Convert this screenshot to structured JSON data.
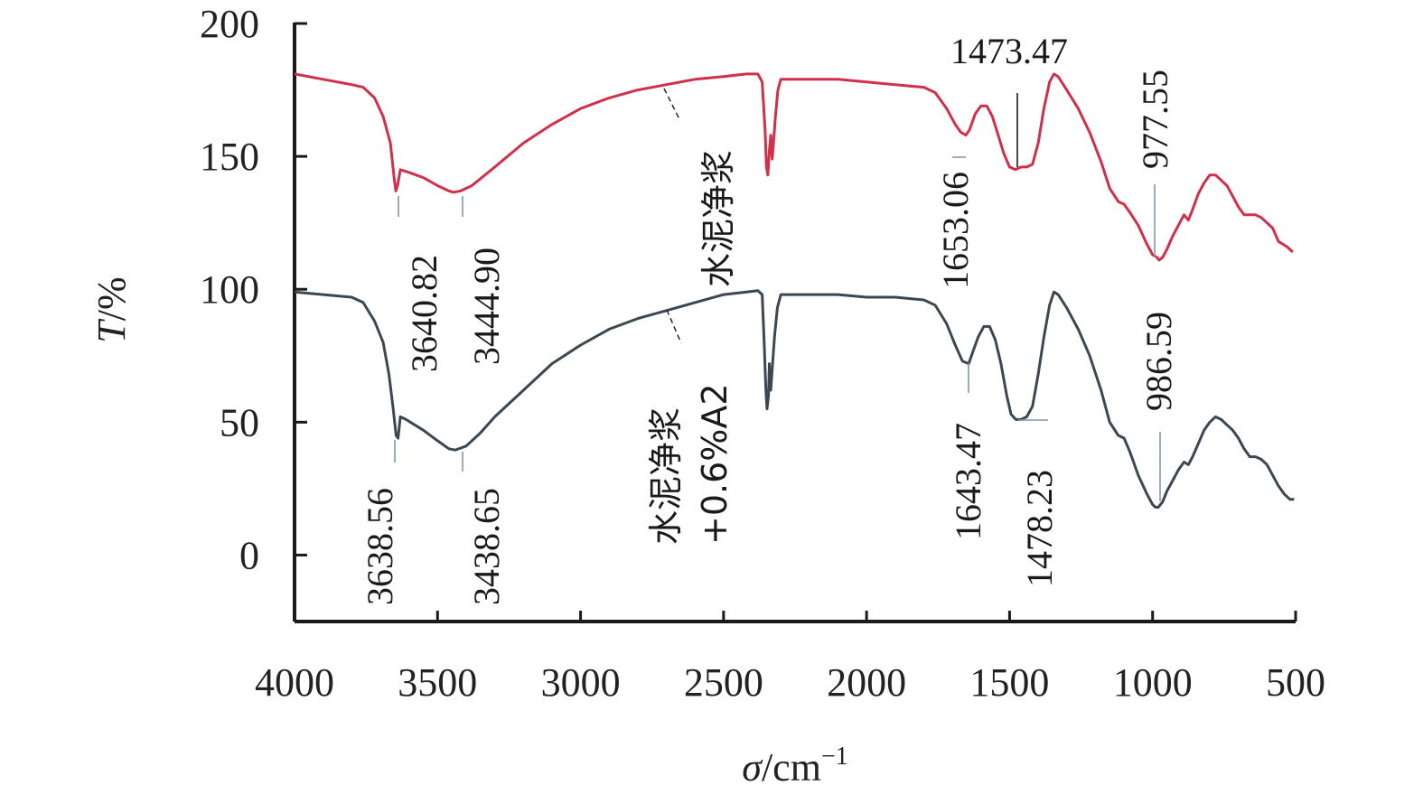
{
  "chart_data": {
    "type": "line",
    "title": "",
    "xlabel_italic": "σ",
    "xlabel_rest": "/cm",
    "xlabel_sup": "−1",
    "ylabel_italic": "T",
    "ylabel_rest": "/%",
    "xlim": [
      4000,
      500
    ],
    "ylim": [
      -25,
      200
    ],
    "x_ticks": [
      "4000",
      "3500",
      "3000",
      "2500",
      "2000",
      "1500",
      "1000",
      "500"
    ],
    "y_ticks": [
      "200",
      "150",
      "100",
      "50",
      "0"
    ],
    "grid": false,
    "series": [
      {
        "name": "水泥净浆",
        "color": "#d0304a",
        "points": [
          [
            4000,
            181
          ],
          [
            3900,
            179
          ],
          [
            3800,
            177
          ],
          [
            3760,
            176
          ],
          [
            3720,
            172
          ],
          [
            3690,
            165
          ],
          [
            3665,
            155
          ],
          [
            3652,
            142
          ],
          [
            3646,
            137
          ],
          [
            3640,
            139
          ],
          [
            3630,
            145
          ],
          [
            3600,
            144
          ],
          [
            3550,
            142
          ],
          [
            3500,
            139
          ],
          [
            3460,
            137
          ],
          [
            3444,
            136.5
          ],
          [
            3420,
            137
          ],
          [
            3380,
            139
          ],
          [
            3300,
            146
          ],
          [
            3200,
            155
          ],
          [
            3100,
            162
          ],
          [
            3000,
            168
          ],
          [
            2900,
            172
          ],
          [
            2800,
            175
          ],
          [
            2700,
            177
          ],
          [
            2600,
            179
          ],
          [
            2500,
            180
          ],
          [
            2420,
            181
          ],
          [
            2380,
            181
          ],
          [
            2365,
            178
          ],
          [
            2355,
            160
          ],
          [
            2350,
            146
          ],
          [
            2345,
            143
          ],
          [
            2340,
            152
          ],
          [
            2335,
            158
          ],
          [
            2330,
            149
          ],
          [
            2325,
            156
          ],
          [
            2318,
            166
          ],
          [
            2310,
            175
          ],
          [
            2300,
            179
          ],
          [
            2250,
            179
          ],
          [
            2200,
            179
          ],
          [
            2100,
            179
          ],
          [
            2000,
            178
          ],
          [
            1900,
            177
          ],
          [
            1800,
            176
          ],
          [
            1760,
            174
          ],
          [
            1720,
            168
          ],
          [
            1690,
            162
          ],
          [
            1670,
            159
          ],
          [
            1653,
            158
          ],
          [
            1640,
            160
          ],
          [
            1620,
            166
          ],
          [
            1600,
            169
          ],
          [
            1580,
            169
          ],
          [
            1560,
            165
          ],
          [
            1540,
            158
          ],
          [
            1520,
            151
          ],
          [
            1500,
            146
          ],
          [
            1480,
            145
          ],
          [
            1460,
            146
          ],
          [
            1440,
            146
          ],
          [
            1420,
            147
          ],
          [
            1400,
            155
          ],
          [
            1380,
            168
          ],
          [
            1360,
            178
          ],
          [
            1345,
            181
          ],
          [
            1330,
            180
          ],
          [
            1300,
            175
          ],
          [
            1260,
            168
          ],
          [
            1220,
            159
          ],
          [
            1180,
            148
          ],
          [
            1150,
            138
          ],
          [
            1120,
            133
          ],
          [
            1100,
            132
          ],
          [
            1080,
            129
          ],
          [
            1050,
            124
          ],
          [
            1020,
            117
          ],
          [
            1000,
            113
          ],
          [
            985,
            112
          ],
          [
            977,
            111
          ],
          [
            965,
            112
          ],
          [
            950,
            115
          ],
          [
            930,
            120
          ],
          [
            910,
            124
          ],
          [
            890,
            128
          ],
          [
            875,
            126
          ],
          [
            860,
            130
          ],
          [
            840,
            136
          ],
          [
            820,
            140
          ],
          [
            800,
            143
          ],
          [
            780,
            143
          ],
          [
            760,
            141
          ],
          [
            740,
            139
          ],
          [
            720,
            135
          ],
          [
            700,
            131
          ],
          [
            680,
            128
          ],
          [
            660,
            128
          ],
          [
            640,
            128
          ],
          [
            620,
            127
          ],
          [
            600,
            125
          ],
          [
            580,
            123
          ],
          [
            560,
            118
          ],
          [
            530,
            116
          ],
          [
            510,
            114
          ]
        ]
      },
      {
        "name": "水泥净浆+0.6%A2",
        "color": "#3b4852",
        "points": [
          [
            4000,
            99
          ],
          [
            3900,
            98
          ],
          [
            3800,
            97
          ],
          [
            3760,
            95
          ],
          [
            3720,
            88
          ],
          [
            3690,
            80
          ],
          [
            3670,
            68
          ],
          [
            3655,
            55
          ],
          [
            3645,
            45
          ],
          [
            3638,
            44
          ],
          [
            3630,
            52
          ],
          [
            3610,
            51
          ],
          [
            3580,
            49
          ],
          [
            3550,
            47
          ],
          [
            3500,
            43
          ],
          [
            3460,
            40
          ],
          [
            3438,
            39.5
          ],
          [
            3400,
            41
          ],
          [
            3350,
            46
          ],
          [
            3300,
            52
          ],
          [
            3200,
            62
          ],
          [
            3100,
            72
          ],
          [
            3000,
            79
          ],
          [
            2900,
            85
          ],
          [
            2800,
            89
          ],
          [
            2700,
            92
          ],
          [
            2600,
            95
          ],
          [
            2500,
            98
          ],
          [
            2420,
            99
          ],
          [
            2380,
            99.5
          ],
          [
            2365,
            98
          ],
          [
            2358,
            80
          ],
          [
            2352,
            62
          ],
          [
            2348,
            55
          ],
          [
            2343,
            60
          ],
          [
            2340,
            72
          ],
          [
            2335,
            62
          ],
          [
            2330,
            70
          ],
          [
            2322,
            82
          ],
          [
            2312,
            93
          ],
          [
            2300,
            98
          ],
          [
            2200,
            98
          ],
          [
            2100,
            98
          ],
          [
            2000,
            97
          ],
          [
            1900,
            97
          ],
          [
            1800,
            96
          ],
          [
            1760,
            94
          ],
          [
            1720,
            87
          ],
          [
            1690,
            79
          ],
          [
            1665,
            73
          ],
          [
            1643,
            72
          ],
          [
            1630,
            76
          ],
          [
            1610,
            82
          ],
          [
            1590,
            86
          ],
          [
            1570,
            86
          ],
          [
            1550,
            81
          ],
          [
            1530,
            72
          ],
          [
            1510,
            60
          ],
          [
            1495,
            53
          ],
          [
            1478,
            51
          ],
          [
            1460,
            51
          ],
          [
            1440,
            52
          ],
          [
            1420,
            56
          ],
          [
            1400,
            68
          ],
          [
            1380,
            82
          ],
          [
            1360,
            94
          ],
          [
            1345,
            99
          ],
          [
            1330,
            98
          ],
          [
            1300,
            93
          ],
          [
            1260,
            85
          ],
          [
            1220,
            75
          ],
          [
            1180,
            62
          ],
          [
            1150,
            50
          ],
          [
            1120,
            45
          ],
          [
            1100,
            44
          ],
          [
            1080,
            39
          ],
          [
            1050,
            30
          ],
          [
            1020,
            23
          ],
          [
            1000,
            19
          ],
          [
            990,
            18
          ],
          [
            980,
            18
          ],
          [
            965,
            20
          ],
          [
            950,
            24
          ],
          [
            930,
            28
          ],
          [
            910,
            32
          ],
          [
            890,
            35
          ],
          [
            875,
            34
          ],
          [
            860,
            37
          ],
          [
            840,
            42
          ],
          [
            820,
            47
          ],
          [
            800,
            50
          ],
          [
            780,
            52
          ],
          [
            760,
            51
          ],
          [
            740,
            49
          ],
          [
            720,
            47
          ],
          [
            700,
            44
          ],
          [
            680,
            40
          ],
          [
            660,
            37
          ],
          [
            640,
            37
          ],
          [
            620,
            36
          ],
          [
            600,
            34
          ],
          [
            580,
            30
          ],
          [
            560,
            26
          ],
          [
            540,
            23
          ],
          [
            520,
            21
          ],
          [
            505,
            21
          ]
        ]
      }
    ],
    "annotations": [
      {
        "text": "3640.82",
        "x": 3640.82,
        "y": 137,
        "series": 0
      },
      {
        "text": "3444.90",
        "x": 3444.9,
        "y": 136.5,
        "series": 0
      },
      {
        "text": "1653.06",
        "x": 1653.06,
        "y": 158,
        "series": 0
      },
      {
        "text": "1473.47",
        "x": 1473.47,
        "y": 145,
        "series": 0
      },
      {
        "text": "977.55",
        "x": 977.55,
        "y": 111,
        "series": 0
      },
      {
        "text": "3638.56",
        "x": 3638.56,
        "y": 44,
        "series": 1
      },
      {
        "text": "3438.65",
        "x": 3438.65,
        "y": 39.5,
        "series": 1
      },
      {
        "text": "1643.47",
        "x": 1643.47,
        "y": 72,
        "series": 1
      },
      {
        "text": "1478.23",
        "x": 1478.23,
        "y": 51,
        "series": 1
      },
      {
        "text": "986.59",
        "x": 986.59,
        "y": 18,
        "series": 1
      }
    ],
    "series_labels": [
      {
        "lines": [
          "水泥净浆"
        ]
      },
      {
        "lines": [
          "水泥净浆",
          "+0.6%A2"
        ]
      }
    ]
  }
}
